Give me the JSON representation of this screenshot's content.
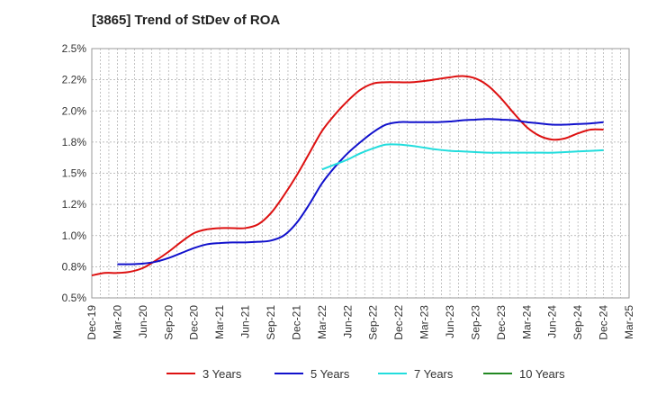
{
  "chart_data": {
    "type": "line",
    "title": "[3865]  Trend of StDev of ROA",
    "xlabel": "",
    "ylabel": "",
    "ylim": [
      0.5,
      2.5
    ],
    "y_ticks": [
      0.5,
      0.75,
      1.0,
      1.25,
      1.5,
      1.75,
      2.0,
      2.25,
      2.5
    ],
    "y_tick_labels": [
      "0.5%",
      "0.8%",
      "1.0%",
      "1.2%",
      "1.5%",
      "1.8%",
      "2.0%",
      "2.2%",
      "2.5%"
    ],
    "x_ticks": [
      "Dec-19",
      "Mar-20",
      "Jun-20",
      "Sep-20",
      "Dec-20",
      "Mar-21",
      "Jun-21",
      "Sep-21",
      "Dec-21",
      "Mar-22",
      "Jun-22",
      "Sep-22",
      "Dec-22",
      "Mar-23",
      "Jun-23",
      "Sep-23",
      "Dec-23",
      "Mar-24",
      "Jun-24",
      "Sep-24",
      "Dec-24",
      "Mar-25"
    ],
    "grid": true,
    "legend_position": "bottom",
    "series": [
      {
        "name": "3 Years",
        "color": "#dd1111",
        "x": [
          0,
          0.5,
          1,
          1.5,
          2,
          2.5,
          3,
          3.5,
          4,
          4.5,
          5,
          5.5,
          6,
          6.5,
          7,
          7.5,
          8,
          8.5,
          9,
          9.5,
          10,
          10.5,
          11,
          11.5,
          12,
          12.5,
          13,
          13.5,
          14,
          14.5,
          15,
          15.5,
          16,
          16.5,
          17,
          17.5,
          18,
          18.5,
          19,
          19.5,
          20
        ],
        "values": [
          0.68,
          0.7,
          0.7,
          0.71,
          0.74,
          0.8,
          0.87,
          0.95,
          1.02,
          1.05,
          1.06,
          1.06,
          1.06,
          1.09,
          1.18,
          1.32,
          1.48,
          1.66,
          1.84,
          1.97,
          2.08,
          2.17,
          2.22,
          2.23,
          2.23,
          2.23,
          2.24,
          2.255,
          2.27,
          2.28,
          2.26,
          2.2,
          2.1,
          1.98,
          1.87,
          1.8,
          1.77,
          1.78,
          1.82,
          1.85,
          1.85
        ]
      },
      {
        "name": "5 Years",
        "color": "#1111cc",
        "x": [
          1,
          1.5,
          2,
          2.5,
          3,
          3.5,
          4,
          4.5,
          5,
          5.5,
          6,
          6.5,
          7,
          7.5,
          8,
          8.5,
          9,
          9.5,
          10,
          10.5,
          11,
          11.5,
          12,
          12.5,
          13,
          13.5,
          14,
          14.5,
          15,
          15.5,
          16,
          16.5,
          17,
          17.5,
          18,
          18.5,
          19,
          19.5,
          20
        ],
        "values": [
          0.77,
          0.77,
          0.775,
          0.79,
          0.82,
          0.86,
          0.9,
          0.93,
          0.94,
          0.945,
          0.945,
          0.95,
          0.96,
          1.0,
          1.1,
          1.25,
          1.42,
          1.55,
          1.66,
          1.75,
          1.83,
          1.89,
          1.91,
          1.91,
          1.91,
          1.91,
          1.915,
          1.925,
          1.93,
          1.935,
          1.93,
          1.925,
          1.91,
          1.9,
          1.89,
          1.89,
          1.895,
          1.9,
          1.91
        ]
      },
      {
        "name": "7 Years",
        "color": "#22dddd",
        "x": [
          9,
          9.5,
          10,
          10.5,
          11,
          11.5,
          12,
          12.5,
          13,
          13.5,
          14,
          14.5,
          15,
          15.5,
          16,
          16.5,
          17,
          17.5,
          18,
          18.5,
          19,
          19.5,
          20
        ],
        "values": [
          1.53,
          1.57,
          1.61,
          1.66,
          1.7,
          1.73,
          1.73,
          1.72,
          1.705,
          1.69,
          1.68,
          1.675,
          1.67,
          1.665,
          1.665,
          1.665,
          1.665,
          1.665,
          1.665,
          1.67,
          1.675,
          1.68,
          1.685
        ]
      },
      {
        "name": "10 Years",
        "color": "#228822",
        "x": [],
        "values": []
      }
    ]
  }
}
